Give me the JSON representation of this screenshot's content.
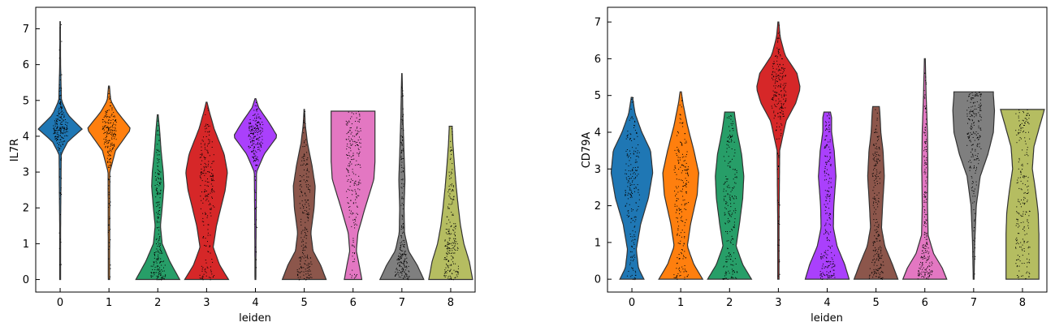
{
  "chart_data": [
    {
      "type": "violin",
      "xlabel": "leiden",
      "ylabel": "IL7R",
      "categories": [
        "0",
        "1",
        "2",
        "3",
        "4",
        "5",
        "6",
        "7",
        "8"
      ],
      "ylim": [
        -0.35,
        7.6
      ],
      "yticks": [
        0,
        1,
        2,
        3,
        4,
        5,
        6,
        7
      ],
      "colors": [
        "#1f77b4",
        "#ff7f0e",
        "#279e68",
        "#d62728",
        "#aa40fc",
        "#8c564b",
        "#e377c2",
        "#7f7f7f",
        "#b5bd61"
      ],
      "series": [
        {
          "category": "0",
          "max": 7.2,
          "profile": [
            [
              0,
              0.02
            ],
            [
              1.4,
              0.02
            ],
            [
              3.5,
              0.05
            ],
            [
              3.85,
              0.35
            ],
            [
              4.2,
              1.0
            ],
            [
              4.6,
              0.35
            ],
            [
              5.0,
              0.06
            ],
            [
              6.0,
              0.02
            ],
            [
              7.2,
              0.01
            ]
          ]
        },
        {
          "category": "1",
          "max": 5.4,
          "profile": [
            [
              0,
              0.03
            ],
            [
              3.0,
              0.04
            ],
            [
              3.6,
              0.3
            ],
            [
              4.2,
              1.0
            ],
            [
              4.7,
              0.35
            ],
            [
              5.0,
              0.08
            ],
            [
              5.4,
              0.02
            ]
          ]
        },
        {
          "category": "2",
          "max": 4.6,
          "profile": [
            [
              0,
              1.0
            ],
            [
              0.5,
              0.55
            ],
            [
              1.0,
              0.2
            ],
            [
              1.5,
              0.12
            ],
            [
              2.0,
              0.2
            ],
            [
              2.6,
              0.28
            ],
            [
              3.0,
              0.25
            ],
            [
              3.6,
              0.15
            ],
            [
              4.2,
              0.08
            ],
            [
              4.6,
              0.02
            ]
          ]
        },
        {
          "category": "3",
          "max": 4.95,
          "profile": [
            [
              0,
              1.0
            ],
            [
              0.4,
              0.6
            ],
            [
              0.9,
              0.3
            ],
            [
              1.5,
              0.45
            ],
            [
              2.5,
              0.85
            ],
            [
              3.0,
              0.95
            ],
            [
              3.5,
              0.8
            ],
            [
              4.2,
              0.35
            ],
            [
              4.7,
              0.12
            ],
            [
              4.95,
              0.02
            ]
          ]
        },
        {
          "category": "4",
          "max": 5.05,
          "profile": [
            [
              0,
              0.02
            ],
            [
              1.5,
              0.03
            ],
            [
              3.0,
              0.05
            ],
            [
              3.5,
              0.4
            ],
            [
              4.0,
              1.0
            ],
            [
              4.4,
              0.6
            ],
            [
              4.8,
              0.15
            ],
            [
              5.05,
              0.02
            ]
          ]
        },
        {
          "category": "5",
          "max": 4.75,
          "profile": [
            [
              0,
              1.0
            ],
            [
              0.4,
              0.75
            ],
            [
              0.8,
              0.4
            ],
            [
              1.3,
              0.3
            ],
            [
              2.0,
              0.45
            ],
            [
              2.6,
              0.5
            ],
            [
              3.2,
              0.35
            ],
            [
              3.8,
              0.15
            ],
            [
              4.3,
              0.05
            ],
            [
              4.75,
              0.01
            ]
          ]
        },
        {
          "category": "6",
          "max": 4.7,
          "profile": [
            [
              0,
              0.4
            ],
            [
              0.4,
              0.28
            ],
            [
              0.8,
              0.15
            ],
            [
              1.3,
              0.22
            ],
            [
              2.0,
              0.55
            ],
            [
              2.8,
              0.95
            ],
            [
              3.3,
              1.0
            ],
            [
              3.8,
              1.0
            ],
            [
              4.5,
              1.0
            ],
            [
              4.7,
              1.0
            ]
          ]
        },
        {
          "category": "7",
          "max": 5.75,
          "profile": [
            [
              0,
              1.0
            ],
            [
              0.4,
              0.7
            ],
            [
              0.8,
              0.3
            ],
            [
              1.3,
              0.12
            ],
            [
              2.0,
              0.1
            ],
            [
              2.8,
              0.14
            ],
            [
              3.5,
              0.1
            ],
            [
              4.5,
              0.05
            ],
            [
              5.75,
              0.01
            ]
          ]
        },
        {
          "category": "8",
          "max": 4.28,
          "profile": [
            [
              0,
              1.0
            ],
            [
              0.5,
              0.85
            ],
            [
              1.0,
              0.6
            ],
            [
              1.5,
              0.45
            ],
            [
              2.0,
              0.35
            ],
            [
              2.6,
              0.25
            ],
            [
              3.2,
              0.17
            ],
            [
              3.8,
              0.1
            ],
            [
              4.2,
              0.07
            ],
            [
              4.28,
              0.07
            ]
          ]
        }
      ]
    },
    {
      "type": "violin",
      "xlabel": "leiden",
      "ylabel": "CD79A",
      "categories": [
        "0",
        "1",
        "2",
        "3",
        "4",
        "5",
        "6",
        "7",
        "8"
      ],
      "ylim": [
        -0.35,
        7.4
      ],
      "yticks": [
        0,
        1,
        2,
        3,
        4,
        5,
        6,
        7
      ],
      "colors": [
        "#1f77b4",
        "#ff7f0e",
        "#279e68",
        "#d62728",
        "#aa40fc",
        "#8c564b",
        "#e377c2",
        "#7f7f7f",
        "#b5bd61"
      ],
      "series": [
        {
          "category": "0",
          "max": 4.95,
          "profile": [
            [
              0,
              0.55
            ],
            [
              0.3,
              0.3
            ],
            [
              0.8,
              0.2
            ],
            [
              1.5,
              0.4
            ],
            [
              2.2,
              0.75
            ],
            [
              2.9,
              0.95
            ],
            [
              3.5,
              0.85
            ],
            [
              4.0,
              0.45
            ],
            [
              4.5,
              0.15
            ],
            [
              4.95,
              0.03
            ]
          ]
        },
        {
          "category": "1",
          "max": 5.1,
          "profile": [
            [
              0,
              1.0
            ],
            [
              0.4,
              0.6
            ],
            [
              0.9,
              0.3
            ],
            [
              1.5,
              0.45
            ],
            [
              2.3,
              0.75
            ],
            [
              2.9,
              0.82
            ],
            [
              3.5,
              0.6
            ],
            [
              4.2,
              0.3
            ],
            [
              4.8,
              0.1
            ],
            [
              5.1,
              0.03
            ]
          ]
        },
        {
          "category": "2",
          "max": 4.55,
          "profile": [
            [
              0,
              1.0
            ],
            [
              0.4,
              0.6
            ],
            [
              0.9,
              0.3
            ],
            [
              1.5,
              0.45
            ],
            [
              2.2,
              0.6
            ],
            [
              2.8,
              0.65
            ],
            [
              3.4,
              0.55
            ],
            [
              4.0,
              0.35
            ],
            [
              4.4,
              0.25
            ],
            [
              4.55,
              0.22
            ]
          ]
        },
        {
          "category": "3",
          "max": 7.0,
          "profile": [
            [
              0,
              0.03
            ],
            [
              1.5,
              0.03
            ],
            [
              3.5,
              0.06
            ],
            [
              4.3,
              0.35
            ],
            [
              4.8,
              0.8
            ],
            [
              5.2,
              1.0
            ],
            [
              5.6,
              0.85
            ],
            [
              6.1,
              0.3
            ],
            [
              6.6,
              0.08
            ],
            [
              7.0,
              0.02
            ]
          ]
        },
        {
          "category": "4",
          "max": 4.55,
          "profile": [
            [
              0,
              1.0
            ],
            [
              0.4,
              0.8
            ],
            [
              0.9,
              0.45
            ],
            [
              1.4,
              0.28
            ],
            [
              2.0,
              0.3
            ],
            [
              2.8,
              0.4
            ],
            [
              3.5,
              0.32
            ],
            [
              4.0,
              0.2
            ],
            [
              4.4,
              0.2
            ],
            [
              4.55,
              0.15
            ]
          ]
        },
        {
          "category": "5",
          "max": 4.7,
          "profile": [
            [
              0,
              1.0
            ],
            [
              0.4,
              0.75
            ],
            [
              0.9,
              0.4
            ],
            [
              1.4,
              0.25
            ],
            [
              2.0,
              0.3
            ],
            [
              2.8,
              0.38
            ],
            [
              3.5,
              0.32
            ],
            [
              4.0,
              0.22
            ],
            [
              4.5,
              0.18
            ],
            [
              4.7,
              0.15
            ]
          ]
        },
        {
          "category": "6",
          "max": 6.0,
          "profile": [
            [
              0,
              1.0
            ],
            [
              0.3,
              0.8
            ],
            [
              0.7,
              0.4
            ],
            [
              1.2,
              0.15
            ],
            [
              2.0,
              0.12
            ],
            [
              3.0,
              0.14
            ],
            [
              4.0,
              0.12
            ],
            [
              5.0,
              0.06
            ],
            [
              6.0,
              0.02
            ]
          ]
        },
        {
          "category": "7",
          "max": 5.1,
          "profile": [
            [
              0,
              0.02
            ],
            [
              1.0,
              0.05
            ],
            [
              2.0,
              0.12
            ],
            [
              2.8,
              0.3
            ],
            [
              3.4,
              0.65
            ],
            [
              4.0,
              0.9
            ],
            [
              4.6,
              0.95
            ],
            [
              5.0,
              0.9
            ],
            [
              5.1,
              0.9
            ]
          ]
        },
        {
          "category": "8",
          "max": 4.62,
          "profile": [
            [
              0,
              0.75
            ],
            [
              0.5,
              0.75
            ],
            [
              1.2,
              0.75
            ],
            [
              1.8,
              0.72
            ],
            [
              2.4,
              0.6
            ],
            [
              3.0,
              0.45
            ],
            [
              3.6,
              0.52
            ],
            [
              4.2,
              0.8
            ],
            [
              4.62,
              1.0
            ]
          ]
        }
      ]
    }
  ]
}
